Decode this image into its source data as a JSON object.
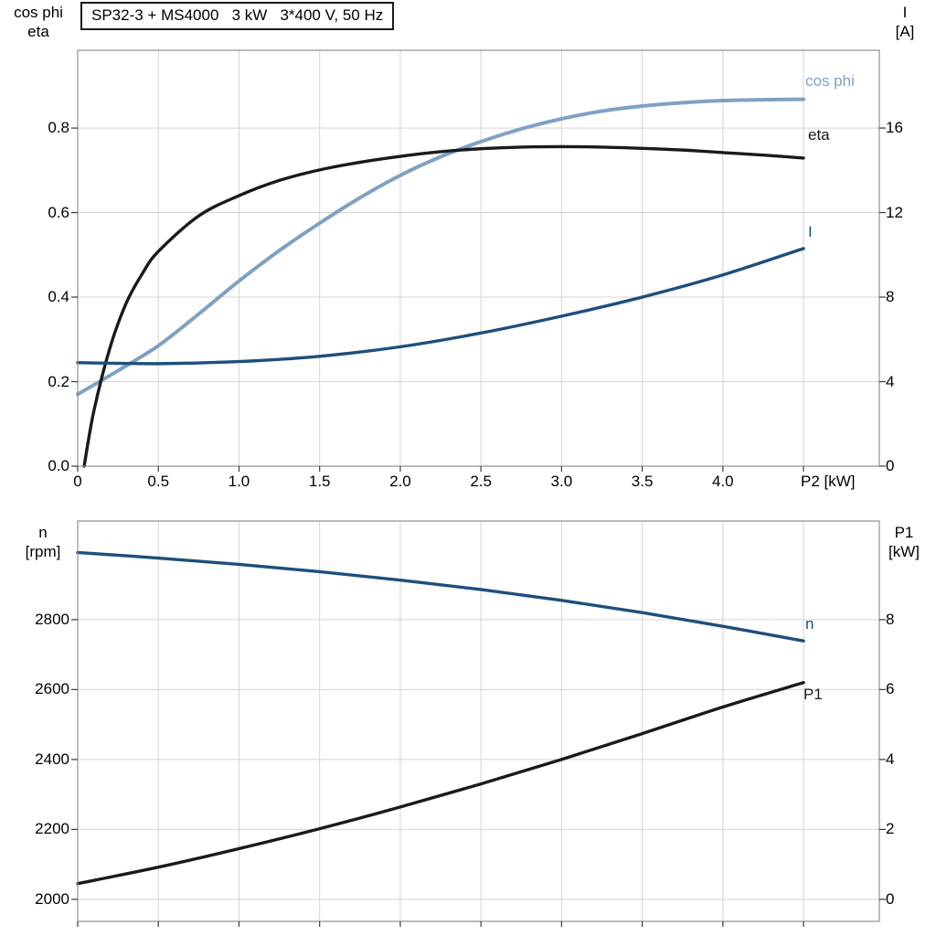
{
  "page": {
    "background": "#ffffff"
  },
  "colors": {
    "cos_phi_blue": "#7fa1c3",
    "dark_blue": "#1d4f7c",
    "curve_black": "#1a1a1a",
    "grid": "#d4d4d4",
    "frame": "#8f8f8f"
  },
  "chart_data": [
    {
      "type": "line",
      "title": "SP32-3 + MS4000   3 kW   3*400 V, 50 Hz",
      "xlabel": "P2 [kW]",
      "xlim": [
        0,
        4.97
      ],
      "grid": true,
      "x_ticks": {
        "values": [
          0,
          0.5,
          1,
          1.5,
          2,
          2.5,
          3,
          3.5,
          4,
          4.5
        ],
        "labels": [
          "0",
          "0.5",
          "1.0",
          "1.5",
          "2.0",
          "2.5",
          "3.0",
          "3.5",
          "4.0",
          ""
        ]
      },
      "left_axis": {
        "label1": "cos phi",
        "label2": "eta",
        "ticks": [
          0,
          0.2,
          0.4,
          0.6,
          0.8
        ],
        "labels": [
          "0.0",
          "0.2",
          "0.4",
          "0.6",
          "0.8"
        ],
        "lim": [
          0,
          0.984
        ]
      },
      "right_axis": {
        "label1": "I",
        "label2": "[A]",
        "ticks": [
          0,
          4,
          8,
          12,
          16
        ],
        "labels": [
          "0",
          "4",
          "8",
          "12",
          "16"
        ],
        "lim": [
          0,
          19.68
        ]
      },
      "series": [
        {
          "name": "cos phi",
          "axis": "left",
          "color": "#7fa1c3",
          "width": 4,
          "x": [
            0,
            0.25,
            0.5,
            0.75,
            1.0,
            1.25,
            1.5,
            1.75,
            2.0,
            2.25,
            2.5,
            2.75,
            3.0,
            3.25,
            3.5,
            3.75,
            4.0,
            4.25,
            4.5
          ],
          "y": [
            0.17,
            0.226,
            0.285,
            0.36,
            0.438,
            0.51,
            0.575,
            0.635,
            0.688,
            0.732,
            0.768,
            0.798,
            0.822,
            0.84,
            0.852,
            0.86,
            0.865,
            0.867,
            0.868
          ]
        },
        {
          "name": "eta",
          "axis": "left",
          "color": "#1a1a1a",
          "width": 3.4,
          "x": [
            0.04,
            0.1,
            0.2,
            0.3,
            0.4,
            0.5,
            0.75,
            1.0,
            1.25,
            1.5,
            1.75,
            2.0,
            2.25,
            2.5,
            2.75,
            3.0,
            3.25,
            3.5,
            3.75,
            4.0,
            4.25,
            4.5
          ],
          "y": [
            0.0,
            0.13,
            0.28,
            0.385,
            0.455,
            0.508,
            0.592,
            0.64,
            0.676,
            0.701,
            0.719,
            0.733,
            0.744,
            0.751,
            0.755,
            0.756,
            0.755,
            0.752,
            0.748,
            0.742,
            0.736,
            0.729
          ]
        },
        {
          "name": "I",
          "axis": "right",
          "color": "#1d4f7c",
          "width": 3.4,
          "x": [
            0,
            0.5,
            1.0,
            1.5,
            2.0,
            2.5,
            3.0,
            3.5,
            4.0,
            4.5
          ],
          "y": [
            4.9,
            4.85,
            4.95,
            5.2,
            5.65,
            6.3,
            7.1,
            8.0,
            9.05,
            10.3
          ]
        }
      ]
    },
    {
      "type": "line",
      "title": "",
      "xlabel": "",
      "xlim": [
        0,
        4.97
      ],
      "grid": true,
      "x_ticks": {
        "values": [
          0,
          0.5,
          1,
          1.5,
          2,
          2.5,
          3,
          3.5,
          4,
          4.5
        ],
        "labels": [
          "",
          "",
          "",
          "",
          "",
          "",
          "",
          "",
          "",
          ""
        ]
      },
      "left_axis": {
        "label1": "n",
        "label2": "[rpm]",
        "ticks": [
          2000,
          2200,
          2400,
          2600,
          2800
        ],
        "labels": [
          "2000",
          "2200",
          "2400",
          "2600",
          "2800"
        ],
        "lim": [
          1937,
          3082
        ]
      },
      "right_axis": {
        "label1": "P1",
        "label2": "[kW]",
        "ticks": [
          0,
          2,
          4,
          6,
          8
        ],
        "labels": [
          "0",
          "2",
          "4",
          "6",
          "8"
        ],
        "lim": [
          -0.63,
          10.82
        ]
      },
      "series": [
        {
          "name": "n",
          "axis": "left",
          "color": "#1d4f7c",
          "width": 3.4,
          "x": [
            0,
            0.5,
            1.0,
            1.5,
            2.0,
            2.5,
            3.0,
            3.5,
            4.0,
            4.5
          ],
          "y": [
            2992,
            2976,
            2958,
            2937,
            2913,
            2886,
            2855,
            2820,
            2781,
            2739
          ]
        },
        {
          "name": "P1",
          "axis": "right",
          "color": "#1a1a1a",
          "width": 3.4,
          "x": [
            0,
            0.5,
            1.0,
            1.5,
            2.0,
            2.5,
            3.0,
            3.5,
            4.0,
            4.5
          ],
          "y": [
            0.45,
            0.92,
            1.45,
            2.02,
            2.64,
            3.3,
            4.0,
            4.74,
            5.5,
            6.2
          ]
        }
      ]
    }
  ]
}
